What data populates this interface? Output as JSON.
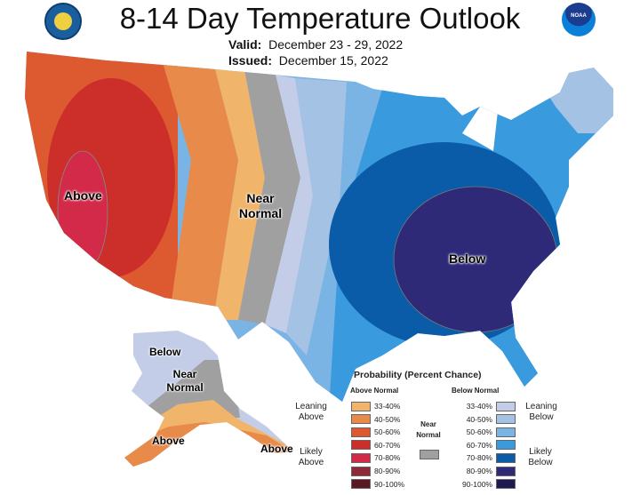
{
  "title": "8-14 Day Temperature Outlook",
  "valid_label": "Valid:",
  "valid_value": "December 23 - 29, 2022",
  "issued_label": "Issued:",
  "issued_value": "December 15, 2022",
  "logos": {
    "left": "doc-seal",
    "right": "NOAA"
  },
  "map_labels": {
    "above_west": "Above",
    "near_normal": "Near Normal",
    "below_east": "Below",
    "ak_below": "Below",
    "ak_near": "Near Normal",
    "ak_above": "Above",
    "ak_above_se": "Above"
  },
  "legend": {
    "title": "Probability (Percent Chance)",
    "above_header": "Above Normal",
    "below_header": "Below Normal",
    "near_label": "Near Normal",
    "near_color": "#a0a0a0",
    "leaning_above": "Leaning Above",
    "likely_above": "Likely Above",
    "leaning_below": "Leaning Below",
    "likely_below": "Likely Below",
    "above": [
      {
        "range": "33-40%",
        "color": "#f0b46a"
      },
      {
        "range": "40-50%",
        "color": "#e88a4a"
      },
      {
        "range": "50-60%",
        "color": "#dd5a30"
      },
      {
        "range": "60-70%",
        "color": "#cc2e2a"
      },
      {
        "range": "70-80%",
        "color": "#d42a4a"
      },
      {
        "range": "80-90%",
        "color": "#8e2a38"
      },
      {
        "range": "90-100%",
        "color": "#5a1a24"
      }
    ],
    "below": [
      {
        "range": "33-40%",
        "color": "#c4cde8"
      },
      {
        "range": "40-50%",
        "color": "#a4c2e4"
      },
      {
        "range": "50-60%",
        "color": "#7ab4e4"
      },
      {
        "range": "60-70%",
        "color": "#3a9ade"
      },
      {
        "range": "70-80%",
        "color": "#0a5ca8"
      },
      {
        "range": "80-90%",
        "color": "#2e2a78"
      },
      {
        "range": "90-100%",
        "color": "#1e1a50"
      }
    ]
  }
}
